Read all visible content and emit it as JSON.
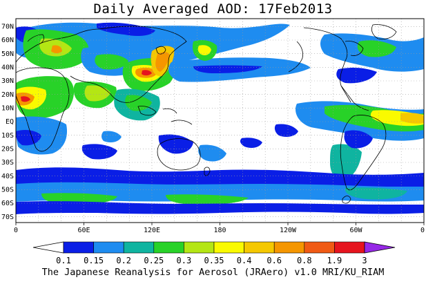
{
  "title": "Daily Averaged AOD: 17Feb2013",
  "footer": "The Japanese Reanalysis for Aerosol (JRAero) v1.0 MRI/KU_RIAM",
  "map": {
    "lon_labels": [
      "0",
      "60E",
      "120E",
      "180",
      "120W",
      "60W",
      "0"
    ],
    "lat_labels": [
      "70N",
      "60N",
      "50N",
      "40N",
      "30N",
      "20N",
      "10N",
      "EQ",
      "10S",
      "20S",
      "30S",
      "40S",
      "50S",
      "60S",
      "70S"
    ],
    "lon_range": [
      0,
      360
    ],
    "lat_range": [
      -75,
      75
    ],
    "grid": "dotted"
  },
  "colorbar": {
    "labels": [
      "0.1",
      "0.15",
      "0.2",
      "0.25",
      "0.3",
      "0.35",
      "0.4",
      "0.6",
      "0.8",
      "1.9",
      "3"
    ],
    "colors": [
      "#ffffff",
      "#0a1ee6",
      "#1e8cf0",
      "#0fb4a0",
      "#28d228",
      "#b4e614",
      "#fafa00",
      "#f5c800",
      "#f59600",
      "#f05a14",
      "#e6141e",
      "#9628e6"
    ]
  },
  "aod_regions": [
    {
      "name": "n-america-east",
      "level": 3,
      "cx": 290,
      "cy": 45,
      "rx": 22,
      "ry": 12
    },
    {
      "name": "n-america-east-core",
      "level": 6,
      "cx": 295,
      "cy": 47,
      "rx": 5,
      "ry": 4
    },
    {
      "name": "north-pacific-band",
      "level": 2,
      "cx": 185,
      "cy": 35,
      "rx": 70,
      "ry": 10
    },
    {
      "name": "china-plume",
      "level": 8,
      "cx": 210,
      "cy": 35,
      "rx": 25,
      "ry": 10
    },
    {
      "name": "n-africa-dust",
      "level": 8,
      "cx": 12,
      "cy": 12,
      "rx": 15,
      "ry": 10
    },
    {
      "name": "south-ocean-band",
      "level": 2,
      "cx": 180,
      "cy": -53,
      "rx": 170,
      "ry": 8
    },
    {
      "name": "atlantic-band",
      "level": 4,
      "cx": 340,
      "cy": 10,
      "rx": 25,
      "ry": 10
    }
  ]
}
